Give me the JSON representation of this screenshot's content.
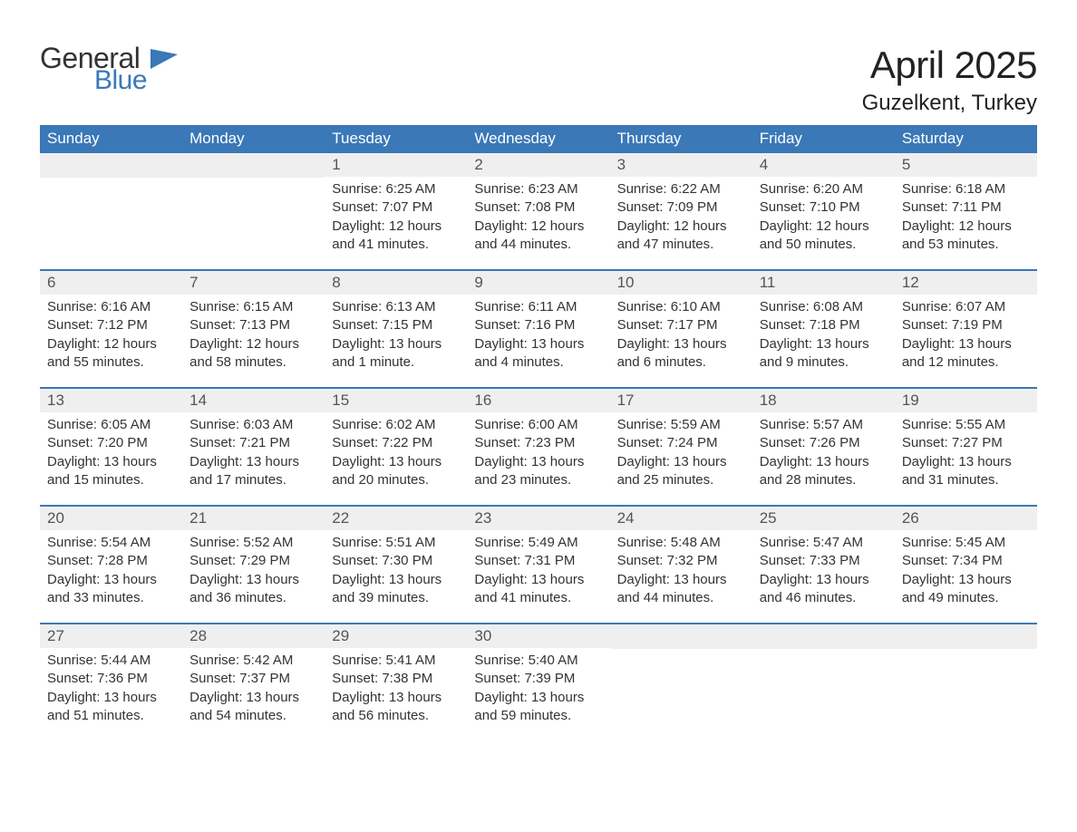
{
  "logo": {
    "word1": "General",
    "word2": "Blue",
    "word1_color": "#333333",
    "word2_color": "#3a78b8",
    "flag_color": "#3a78b8"
  },
  "title": "April 2025",
  "location": "Guzelkent, Turkey",
  "colors": {
    "header_bg": "#3a78b8",
    "header_text": "#ffffff",
    "daynum_bg": "#efefef",
    "week_border": "#3a78b8",
    "body_text": "#333333",
    "background": "#ffffff"
  },
  "typography": {
    "title_fontsize": 42,
    "location_fontsize": 24,
    "header_fontsize": 17,
    "daynum_fontsize": 17,
    "body_fontsize": 15,
    "font_family": "Segoe UI, Arial, Helvetica, sans-serif"
  },
  "columns": [
    "Sunday",
    "Monday",
    "Tuesday",
    "Wednesday",
    "Thursday",
    "Friday",
    "Saturday"
  ],
  "weeks": [
    [
      {
        "day": null
      },
      {
        "day": null
      },
      {
        "day": 1,
        "sunrise": "6:25 AM",
        "sunset": "7:07 PM",
        "daylight": "12 hours and 41 minutes."
      },
      {
        "day": 2,
        "sunrise": "6:23 AM",
        "sunset": "7:08 PM",
        "daylight": "12 hours and 44 minutes."
      },
      {
        "day": 3,
        "sunrise": "6:22 AM",
        "sunset": "7:09 PM",
        "daylight": "12 hours and 47 minutes."
      },
      {
        "day": 4,
        "sunrise": "6:20 AM",
        "sunset": "7:10 PM",
        "daylight": "12 hours and 50 minutes."
      },
      {
        "day": 5,
        "sunrise": "6:18 AM",
        "sunset": "7:11 PM",
        "daylight": "12 hours and 53 minutes."
      }
    ],
    [
      {
        "day": 6,
        "sunrise": "6:16 AM",
        "sunset": "7:12 PM",
        "daylight": "12 hours and 55 minutes."
      },
      {
        "day": 7,
        "sunrise": "6:15 AM",
        "sunset": "7:13 PM",
        "daylight": "12 hours and 58 minutes."
      },
      {
        "day": 8,
        "sunrise": "6:13 AM",
        "sunset": "7:15 PM",
        "daylight": "13 hours and 1 minute."
      },
      {
        "day": 9,
        "sunrise": "6:11 AM",
        "sunset": "7:16 PM",
        "daylight": "13 hours and 4 minutes."
      },
      {
        "day": 10,
        "sunrise": "6:10 AM",
        "sunset": "7:17 PM",
        "daylight": "13 hours and 6 minutes."
      },
      {
        "day": 11,
        "sunrise": "6:08 AM",
        "sunset": "7:18 PM",
        "daylight": "13 hours and 9 minutes."
      },
      {
        "day": 12,
        "sunrise": "6:07 AM",
        "sunset": "7:19 PM",
        "daylight": "13 hours and 12 minutes."
      }
    ],
    [
      {
        "day": 13,
        "sunrise": "6:05 AM",
        "sunset": "7:20 PM",
        "daylight": "13 hours and 15 minutes."
      },
      {
        "day": 14,
        "sunrise": "6:03 AM",
        "sunset": "7:21 PM",
        "daylight": "13 hours and 17 minutes."
      },
      {
        "day": 15,
        "sunrise": "6:02 AM",
        "sunset": "7:22 PM",
        "daylight": "13 hours and 20 minutes."
      },
      {
        "day": 16,
        "sunrise": "6:00 AM",
        "sunset": "7:23 PM",
        "daylight": "13 hours and 23 minutes."
      },
      {
        "day": 17,
        "sunrise": "5:59 AM",
        "sunset": "7:24 PM",
        "daylight": "13 hours and 25 minutes."
      },
      {
        "day": 18,
        "sunrise": "5:57 AM",
        "sunset": "7:26 PM",
        "daylight": "13 hours and 28 minutes."
      },
      {
        "day": 19,
        "sunrise": "5:55 AM",
        "sunset": "7:27 PM",
        "daylight": "13 hours and 31 minutes."
      }
    ],
    [
      {
        "day": 20,
        "sunrise": "5:54 AM",
        "sunset": "7:28 PM",
        "daylight": "13 hours and 33 minutes."
      },
      {
        "day": 21,
        "sunrise": "5:52 AM",
        "sunset": "7:29 PM",
        "daylight": "13 hours and 36 minutes."
      },
      {
        "day": 22,
        "sunrise": "5:51 AM",
        "sunset": "7:30 PM",
        "daylight": "13 hours and 39 minutes."
      },
      {
        "day": 23,
        "sunrise": "5:49 AM",
        "sunset": "7:31 PM",
        "daylight": "13 hours and 41 minutes."
      },
      {
        "day": 24,
        "sunrise": "5:48 AM",
        "sunset": "7:32 PM",
        "daylight": "13 hours and 44 minutes."
      },
      {
        "day": 25,
        "sunrise": "5:47 AM",
        "sunset": "7:33 PM",
        "daylight": "13 hours and 46 minutes."
      },
      {
        "day": 26,
        "sunrise": "5:45 AM",
        "sunset": "7:34 PM",
        "daylight": "13 hours and 49 minutes."
      }
    ],
    [
      {
        "day": 27,
        "sunrise": "5:44 AM",
        "sunset": "7:36 PM",
        "daylight": "13 hours and 51 minutes."
      },
      {
        "day": 28,
        "sunrise": "5:42 AM",
        "sunset": "7:37 PM",
        "daylight": "13 hours and 54 minutes."
      },
      {
        "day": 29,
        "sunrise": "5:41 AM",
        "sunset": "7:38 PM",
        "daylight": "13 hours and 56 minutes."
      },
      {
        "day": 30,
        "sunrise": "5:40 AM",
        "sunset": "7:39 PM",
        "daylight": "13 hours and 59 minutes."
      },
      {
        "day": null
      },
      {
        "day": null
      },
      {
        "day": null
      }
    ]
  ],
  "labels": {
    "sunrise": "Sunrise:",
    "sunset": "Sunset:",
    "daylight": "Daylight:"
  }
}
